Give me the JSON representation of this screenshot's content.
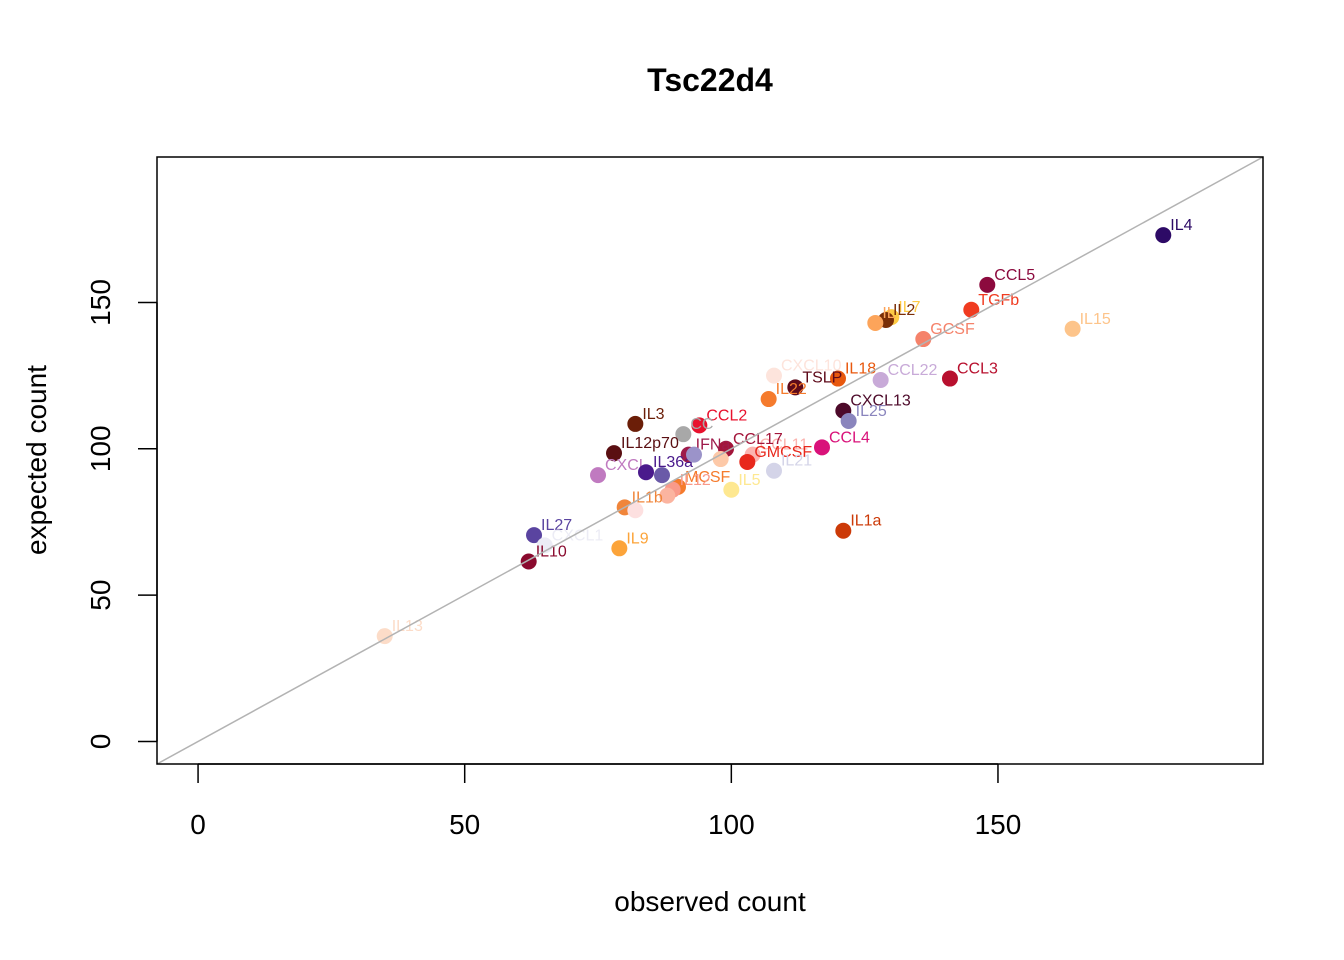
{
  "chart_data": {
    "type": "scatter",
    "title": "Tsc22d4",
    "xlabel": "observed count",
    "ylabel": "expected count",
    "xlim": [
      -7.7,
      199.7
    ],
    "ylim": [
      -7.7,
      199.7
    ],
    "xticks": [
      0,
      50,
      100,
      150
    ],
    "yticks": [
      0,
      50,
      100,
      150
    ],
    "grid": false,
    "legend": "none",
    "reference_line": {
      "slope": 1,
      "intercept": 0,
      "color": "#b3b3b3"
    },
    "points": [
      {
        "label": "IL4",
        "x": 181,
        "y": 173,
        "color": "#2d0a66"
      },
      {
        "label": "CCL5",
        "x": 148,
        "y": 156,
        "color": "#8c0a3e"
      },
      {
        "label": "TGFb",
        "x": 145,
        "y": 147.5,
        "color": "#f03b20"
      },
      {
        "label": "IL15",
        "x": 164,
        "y": 141,
        "color": "#fdc48a"
      },
      {
        "label": "GCSF",
        "x": 136,
        "y": 137.5,
        "color": "#f5826a"
      },
      {
        "label": "IL7",
        "x": 130,
        "y": 145,
        "color": "#fecb45"
      },
      {
        "label": "IL2",
        "x": 129,
        "y": 144,
        "color": "#7a2e06"
      },
      {
        "label": "IL",
        "x": 127,
        "y": 143,
        "color": "#fca45a"
      },
      {
        "label": "CCL3",
        "x": 141,
        "y": 124,
        "color": "#b8102e"
      },
      {
        "label": "CCL22",
        "x": 128,
        "y": 123.5,
        "color": "#c8aad8"
      },
      {
        "label": "IL18",
        "x": 120,
        "y": 124,
        "color": "#e8580e"
      },
      {
        "label": "CXCL10",
        "x": 108,
        "y": 125,
        "color": "#fde4dc"
      },
      {
        "label": "TSLP",
        "x": 112,
        "y": 121,
        "color": "#5e0a1a"
      },
      {
        "label": "IL22",
        "x": 107,
        "y": 117,
        "color": "#f57b2d"
      },
      {
        "label": "CXCL13",
        "x": 121,
        "y": 113,
        "color": "#4d0a2a"
      },
      {
        "label": "IL25",
        "x": 122,
        "y": 109.5,
        "color": "#8a85bd"
      },
      {
        "label": "IL3",
        "x": 82,
        "y": 108.5,
        "color": "#6b1e08"
      },
      {
        "label": "CCL2",
        "x": 94,
        "y": 108,
        "color": "#e8112d"
      },
      {
        "label": "CC",
        "x": 91,
        "y": 105,
        "color": "#a8a8a8"
      },
      {
        "label": "CCL4",
        "x": 117,
        "y": 100.5,
        "color": "#d9127a"
      },
      {
        "label": "CCL11",
        "x": 104,
        "y": 98,
        "color": "#fbb4b0"
      },
      {
        "label": "CCL17",
        "x": 99,
        "y": 100,
        "color": "#a3153a"
      },
      {
        "label": "IFNa",
        "x": 92,
        "y": 98,
        "color": "#9e1a4a"
      },
      {
        "label": "IL12p70",
        "x": 78,
        "y": 98.5,
        "color": "#5a0f12"
      },
      {
        "label": "GMCSF",
        "x": 103,
        "y": 95.5,
        "color": "#e8281c"
      },
      {
        "label": "IL21",
        "x": 108,
        "y": 92.5,
        "color": "#d4d4e8"
      },
      {
        "label": "CXCL",
        "x": 75,
        "y": 91,
        "color": "#c07ac0"
      },
      {
        "label": "IL36a",
        "x": 84,
        "y": 92,
        "color": "#4a1a8c"
      },
      {
        "label": "",
        "x": 87,
        "y": 91,
        "color": "#6a5aa8"
      },
      {
        "label": "",
        "x": 93,
        "y": 98,
        "color": "#9b93c9"
      },
      {
        "label": "",
        "x": 98,
        "y": 96.5,
        "color": "#fdc9a8"
      },
      {
        "label": "IL5",
        "x": 100,
        "y": 86,
        "color": "#fee891"
      },
      {
        "label": "MCSF",
        "x": 90,
        "y": 87,
        "color": "#f57b2d"
      },
      {
        "label": "IL12",
        "x": 89,
        "y": 86,
        "color": "#f99a8a"
      },
      {
        "label": "",
        "x": 88,
        "y": 84,
        "color": "#fbb4a0"
      },
      {
        "label": "IL1b",
        "x": 80,
        "y": 80,
        "color": "#f0853a"
      },
      {
        "label": "",
        "x": 82,
        "y": 79,
        "color": "#fde0e0"
      },
      {
        "label": "IL1a",
        "x": 121,
        "y": 72,
        "color": "#cc3a08"
      },
      {
        "label": "IL27",
        "x": 63,
        "y": 70.5,
        "color": "#5a44a0"
      },
      {
        "label": "CXCL1",
        "x": 65,
        "y": 67,
        "color": "#ececf5"
      },
      {
        "label": "IL9",
        "x": 79,
        "y": 66,
        "color": "#fca43a"
      },
      {
        "label": "IL10",
        "x": 62,
        "y": 61.5,
        "color": "#8a0a2e"
      },
      {
        "label": "IL13",
        "x": 35,
        "y": 36,
        "color": "#fcdcc8"
      }
    ]
  }
}
